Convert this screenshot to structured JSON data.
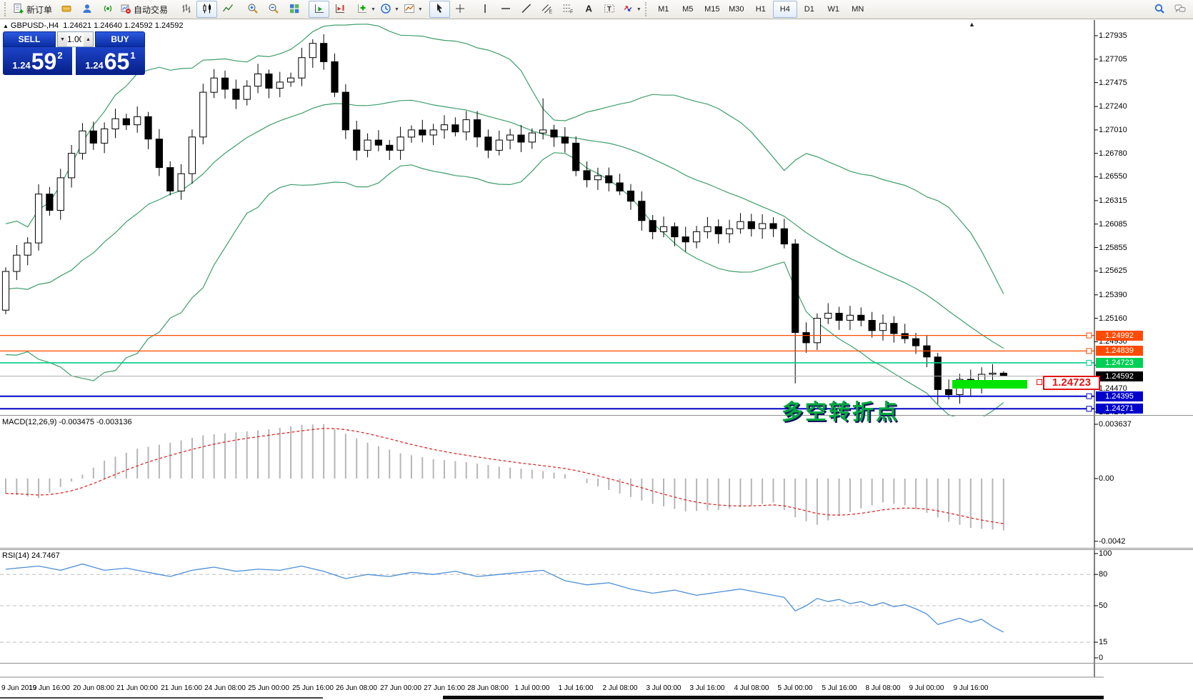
{
  "toolbar": {
    "new_order_label": "新订单",
    "autotrading_label": "自动交易",
    "buttons": [
      {
        "name": "new-order-button",
        "icon": "new-order",
        "label": "新订单"
      },
      {
        "name": "new-chart-button",
        "icon": "new-chart"
      },
      {
        "name": "community-button",
        "icon": "community"
      },
      {
        "name": "signals-button",
        "icon": "signals"
      },
      {
        "name": "autotrading-button",
        "icon": "autotrading",
        "label": "自动交易"
      },
      {
        "sep": true
      },
      {
        "name": "bar-chart-button",
        "icon": "bars"
      },
      {
        "name": "candlestick-chart-button",
        "icon": "candles",
        "active": true
      },
      {
        "name": "line-chart-button",
        "icon": "linechart"
      },
      {
        "sep": true
      },
      {
        "name": "zoom-in-button",
        "icon": "zoom-in"
      },
      {
        "name": "zoom-out-button",
        "icon": "zoom-out"
      },
      {
        "name": "tile-windows-button",
        "icon": "tile"
      },
      {
        "sep": true
      },
      {
        "name": "auto-scroll-button",
        "icon": "autoscroll",
        "active": true
      },
      {
        "name": "chart-shift-button",
        "icon": "shift"
      },
      {
        "sep": true
      },
      {
        "name": "indicators-button",
        "icon": "indicators",
        "drop": true
      },
      {
        "name": "periods-button",
        "icon": "periods",
        "drop": true
      },
      {
        "name": "templates-button",
        "icon": "templates",
        "drop": true
      },
      {
        "sep": true
      },
      {
        "name": "cursor-button",
        "icon": "cursor",
        "active": true
      },
      {
        "name": "crosshair-button",
        "icon": "crosshair"
      },
      {
        "sep": true
      },
      {
        "name": "vertical-line-button",
        "icon": "vline"
      },
      {
        "name": "horizontal-line-button",
        "icon": "hline"
      },
      {
        "name": "trendline-button",
        "icon": "trend"
      },
      {
        "name": "channel-button",
        "icon": "channel"
      },
      {
        "name": "fibonacci-button",
        "icon": "fibo"
      },
      {
        "name": "text-button",
        "icon": "text-a"
      },
      {
        "name": "text-label-button",
        "icon": "text-label"
      },
      {
        "name": "arrows-button",
        "icon": "arrows",
        "drop": true
      }
    ],
    "timeframes": {
      "labels": [
        "M1",
        "M5",
        "M15",
        "M30",
        "H1",
        "H4",
        "D1",
        "W1",
        "MN"
      ],
      "active": "H4"
    },
    "right_buttons": [
      {
        "name": "search-button",
        "icon": "search"
      },
      {
        "name": "chat-button",
        "icon": "chat"
      }
    ]
  },
  "chart": {
    "title_marker": "▲",
    "title": "GBPUSD-,H4",
    "ohlc": "1.24621 1.24640 1.24592 1.24592",
    "top_marker": "▲"
  },
  "trade_panel": {
    "sell_label": "SELL",
    "buy_label": "BUY",
    "volume": "1.00",
    "spin_down": "▼",
    "spin_up": "▲",
    "sell_price_small": "1.24",
    "sell_price_big": "59",
    "sell_price_sup": "2",
    "buy_price_small": "1.24",
    "buy_price_big": "65",
    "buy_price_sup": "1"
  },
  "annotations": {
    "turning_point": "多空转折点",
    "price_box": "1.24723"
  },
  "macd": {
    "label": "MACD(12,26,9)",
    "values_text": "-0.003475 -0.003136",
    "scale": [
      {
        "text": "0.003637",
        "value": 0.003637
      },
      {
        "text": "0.00",
        "value": 0
      },
      {
        "text": "-0.0042",
        "value": -0.0042
      }
    ]
  },
  "rsi": {
    "label": "RSI(14)",
    "value_text": "24.7467",
    "scale": [
      {
        "text": "100",
        "value": 100
      },
      {
        "text": "80",
        "value": 80,
        "dashed": true
      },
      {
        "text": "50",
        "value": 50,
        "dashed": true
      },
      {
        "text": "15",
        "value": 15,
        "dashed": true
      },
      {
        "text": "0",
        "value": 0
      }
    ]
  },
  "price_axis": {
    "ticks": [
      "1.27935",
      "1.27705",
      "1.27475",
      "1.27240",
      "1.27010",
      "1.26780",
      "1.26550",
      "1.26315",
      "1.26085",
      "1.25855",
      "1.25625",
      "1.25390",
      "1.25160",
      "1.24930",
      "1.24700",
      "1.24470",
      "1.24240"
    ]
  },
  "levels": [
    {
      "text": "1.24992",
      "price": 1.24992,
      "color": "#ff4a00",
      "bg": "#ff4a00",
      "width": 1.2
    },
    {
      "text": "1.24839",
      "price": 1.24839,
      "color": "#ff4a00",
      "bg": "#ff4a00",
      "width": 1.2
    },
    {
      "text": "1.24723",
      "price": 1.24723,
      "color": "#00cd89",
      "bg": "#00cf55",
      "width": 1.6
    },
    {
      "text": "1.24395",
      "price": 1.24395,
      "color": "#0202cc",
      "bg": "#0202cc",
      "width": 2
    },
    {
      "text": "1.24271",
      "price": 1.24271,
      "color": "#0202cc",
      "bg": "#0202cc",
      "width": 2
    }
  ],
  "current_price": {
    "text": "1.24592",
    "price": 1.24592,
    "line_color": "#ababab",
    "bg": "#000000"
  },
  "time_axis": {
    "labels": [
      "9 Jun 2019",
      "19 Jun 16:00",
      "20 Jun 08:00",
      "21 Jun 00:00",
      "21 Jun 16:00",
      "24 Jun 08:00",
      "25 Jun 00:00",
      "25 Jun 16:00",
      "26 Jun 08:00",
      "27 Jun 00:00",
      "27 Jun 16:00",
      "28 Jun 08:00",
      "1 Jul 00:00",
      "1 Jul 16:00",
      "2 Jul 08:00",
      "3 Jul 00:00",
      "3 Jul 16:00",
      "4 Jul 08:00",
      "5 Jul 00:00",
      "5 Jul 16:00",
      "8 Jul 08:00",
      "9 Jul 00:00",
      "9 Jul 16:00"
    ]
  },
  "colors": {
    "bollinger": "#3d9e6a",
    "macd_histogram": "#b6b6b6",
    "macd_signal": "#e02828",
    "rsi_line": "#4d8fd6",
    "rsi_levels": "#bcbcbc",
    "annotation_green": "#00a93e",
    "object_rect_green": "#00e400",
    "price_box_red": "#e01414",
    "trade_panel_blue": "#1c43c8"
  },
  "chart_data": [
    {
      "type": "candlestick",
      "symbol": "GBPUSD-",
      "period": "H4",
      "current_bar": {
        "open": 1.24621,
        "high": 1.2464,
        "low": 1.24592,
        "close": 1.24592
      },
      "y_ticks": [
        1.27935,
        1.27705,
        1.27475,
        1.2724,
        1.2701,
        1.2678,
        1.2655,
        1.26315,
        1.26085,
        1.25855,
        1.25625,
        1.2539,
        1.2516,
        1.2493,
        1.247,
        1.2447,
        1.2424
      ],
      "closes": [
        1.2562,
        1.2578,
        1.259,
        1.2638,
        1.2622,
        1.2654,
        1.2678,
        1.27,
        1.2688,
        1.2702,
        1.2712,
        1.2706,
        1.2714,
        1.2692,
        1.2664,
        1.2641,
        1.2658,
        1.2694,
        1.2738,
        1.2752,
        1.2741,
        1.2731,
        1.2744,
        1.2756,
        1.2742,
        1.2748,
        1.2752,
        1.2772,
        1.2786,
        1.2768,
        1.2738,
        1.2701,
        1.2681,
        1.2691,
        1.2686,
        1.2681,
        1.2694,
        1.2701,
        1.2696,
        1.2701,
        1.2706,
        1.2699,
        1.2711,
        1.2694,
        1.2681,
        1.2691,
        1.2696,
        1.2689,
        1.2698,
        1.2701,
        1.2694,
        1.2688,
        1.2661,
        1.2652,
        1.2656,
        1.2649,
        1.2641,
        1.2631,
        1.2612,
        1.2601,
        1.2606,
        1.2596,
        1.2591,
        1.2601,
        1.2606,
        1.2599,
        1.2604,
        1.2611,
        1.2604,
        1.2609,
        1.2604,
        1.2589,
        1.2502,
        1.2492,
        1.2516,
        1.2521,
        1.2514,
        1.2519,
        1.2514,
        1.2504,
        1.2511,
        1.2501,
        1.2496,
        1.2489,
        1.2478,
        1.2446,
        1.2441,
        1.2456,
        1.2449,
        1.2461,
        1.24621,
        1.24592
      ],
      "prehistory_closes": [
        1.26,
        1.2555,
        1.2615,
        1.254,
        1.2585,
        1.2525,
        1.2565,
        1.2505,
        1.2545,
        1.2485,
        1.2532,
        1.2492,
        1.255,
        1.2512,
        1.2572,
        1.2532,
        1.259,
        1.2542,
        1.2562,
        1.2524
      ],
      "wick_overrides": {
        "28": {
          "h": 1.279
        },
        "49": {
          "h": 1.2732
        },
        "72": {
          "l": 1.2452
        },
        "85": {
          "l": 1.2432
        },
        "91": {
          "h": 1.2464,
          "l": 1.24592
        }
      },
      "bollinger": {
        "period": 20,
        "deviation": 2
      },
      "horizontal_levels": [
        1.24992,
        1.24839,
        1.24723,
        1.24395,
        1.24271
      ],
      "bid_line": 1.24592
    },
    {
      "type": "line",
      "name": "MACD main (histogram)",
      "anchors": [
        [
          0,
          -0.001
        ],
        [
          3,
          -0.0013
        ],
        [
          6,
          -0.0002
        ],
        [
          9,
          0.0012
        ],
        [
          12,
          0.002
        ],
        [
          15,
          0.0024
        ],
        [
          18,
          0.0029
        ],
        [
          21,
          0.0031
        ],
        [
          24,
          0.0033
        ],
        [
          27,
          0.0036
        ],
        [
          29,
          0.00364
        ],
        [
          31,
          0.003
        ],
        [
          33,
          0.0024
        ],
        [
          36,
          0.0017
        ],
        [
          39,
          0.0013
        ],
        [
          42,
          0.0011
        ],
        [
          45,
          0.0008
        ],
        [
          48,
          0.0006
        ],
        [
          51,
          0.0003
        ],
        [
          53,
          -0.0003
        ],
        [
          56,
          -0.001
        ],
        [
          59,
          -0.0017
        ],
        [
          62,
          -0.0022
        ],
        [
          65,
          -0.0021
        ],
        [
          68,
          -0.0018
        ],
        [
          70,
          -0.0016
        ],
        [
          72,
          -0.0026
        ],
        [
          74,
          -0.0031
        ],
        [
          76,
          -0.0025
        ],
        [
          78,
          -0.002
        ],
        [
          80,
          -0.0016
        ],
        [
          82,
          -0.0018
        ],
        [
          84,
          -0.0023
        ],
        [
          86,
          -0.0029
        ],
        [
          88,
          -0.0033
        ],
        [
          91,
          -0.00347
        ]
      ],
      "ylim": [
        -0.0042,
        0.003637
      ]
    },
    {
      "type": "line",
      "name": "RSI(14)",
      "anchors": [
        [
          0,
          85
        ],
        [
          3,
          88
        ],
        [
          5,
          84
        ],
        [
          7,
          90
        ],
        [
          9,
          84
        ],
        [
          11,
          86
        ],
        [
          13,
          82
        ],
        [
          15,
          78
        ],
        [
          17,
          84
        ],
        [
          19,
          87
        ],
        [
          21,
          83
        ],
        [
          23,
          85
        ],
        [
          25,
          84
        ],
        [
          27,
          88
        ],
        [
          29,
          83
        ],
        [
          31,
          76
        ],
        [
          33,
          80
        ],
        [
          35,
          78
        ],
        [
          37,
          82
        ],
        [
          39,
          80
        ],
        [
          41,
          83
        ],
        [
          43,
          78
        ],
        [
          45,
          80
        ],
        [
          47,
          82
        ],
        [
          49,
          84
        ],
        [
          51,
          74
        ],
        [
          53,
          70
        ],
        [
          55,
          72
        ],
        [
          57,
          66
        ],
        [
          59,
          62
        ],
        [
          61,
          65
        ],
        [
          63,
          60
        ],
        [
          65,
          63
        ],
        [
          67,
          66
        ],
        [
          69,
          62
        ],
        [
          71,
          58
        ],
        [
          72,
          45
        ],
        [
          73,
          50
        ],
        [
          74,
          57
        ],
        [
          75,
          54
        ],
        [
          76,
          56
        ],
        [
          77,
          52
        ],
        [
          78,
          54
        ],
        [
          79,
          50
        ],
        [
          80,
          53
        ],
        [
          81,
          49
        ],
        [
          82,
          51
        ],
        [
          83,
          47
        ],
        [
          84,
          42
        ],
        [
          85,
          32
        ],
        [
          86,
          35
        ],
        [
          87,
          38
        ],
        [
          88,
          34
        ],
        [
          89,
          37
        ],
        [
          90,
          30
        ],
        [
          91,
          24.7467
        ]
      ],
      "levels": [
        80,
        50,
        15
      ],
      "ylim": [
        0,
        100
      ]
    }
  ]
}
